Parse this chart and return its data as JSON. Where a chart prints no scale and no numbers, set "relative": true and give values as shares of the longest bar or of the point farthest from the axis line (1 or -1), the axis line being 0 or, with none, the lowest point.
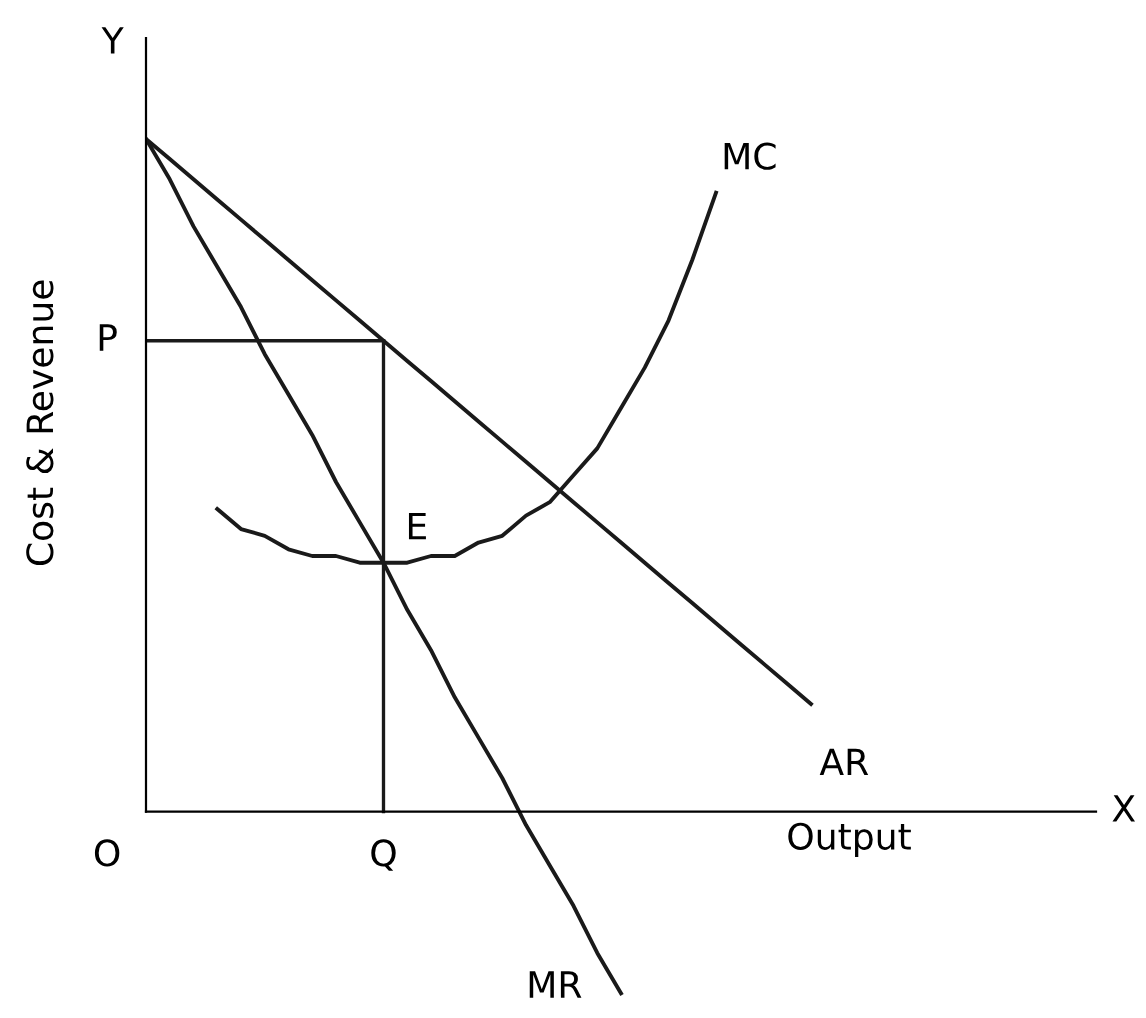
{
  "chart_data": {
    "type": "line",
    "relative": true,
    "xlabel": "Output",
    "ylabel": "Cost & Revenue",
    "categories": [
      null,
      null,
      null,
      null,
      null,
      null,
      null,
      null,
      null,
      null,
      null,
      null,
      null,
      null,
      null,
      null,
      null,
      null,
      null,
      null,
      null,
      null,
      null,
      null,
      null,
      null,
      null,
      null,
      null,
      null,
      null,
      null,
      null,
      null,
      null,
      null,
      null,
      null,
      null,
      null,
      null
    ],
    "series": [
      {
        "name": "AR",
        "color": "#1a1a1a",
        "values": [
          1.0,
          0.97,
          0.94,
          0.91,
          0.88,
          0.85,
          0.82,
          0.79,
          0.76,
          0.73,
          0.7,
          0.67,
          0.64,
          0.61,
          0.58,
          0.55,
          0.52,
          0.49,
          0.46,
          0.43,
          0.4,
          0.37,
          0.34,
          0.31,
          0.28,
          0.25,
          0.22,
          0.19,
          0.16,
          null,
          null,
          null,
          null,
          null,
          null,
          null,
          null,
          null,
          null,
          null,
          null
        ]
      },
      {
        "name": "MR",
        "color": "#1a1a1a",
        "values": [
          1.0,
          0.94,
          0.87,
          0.81,
          0.75,
          0.68,
          0.62,
          0.56,
          0.49,
          0.43,
          0.37,
          0.3,
          0.24,
          0.17,
          0.11,
          0.05,
          -0.02,
          -0.08,
          -0.14,
          -0.21,
          -0.27,
          null,
          null,
          null,
          null,
          null,
          null,
          null,
          null,
          null,
          null,
          null,
          null,
          null,
          null,
          null,
          null,
          null,
          null,
          null,
          null
        ]
      },
      {
        "name": "MC",
        "color": "#1a1a1a",
        "values": [
          null,
          null,
          null,
          0.45,
          0.42,
          0.41,
          0.39,
          0.38,
          0.38,
          0.37,
          0.37,
          0.37,
          0.38,
          0.38,
          0.4,
          0.41,
          0.44,
          0.46,
          0.5,
          0.54,
          0.6,
          0.66,
          0.73,
          0.82,
          0.92,
          null,
          null,
          null,
          null,
          null,
          null,
          null,
          null,
          null,
          null,
          null,
          null,
          null,
          null,
          null,
          null
        ]
      }
    ],
    "ref_lines": [
      {
        "axis": "y",
        "value": 0.7,
        "label": "P",
        "color": "#1a1a1a"
      }
    ],
    "annotations": [
      "O",
      "X",
      "Y",
      "Q",
      {
        "text": "E",
        "y": 0.37
      }
    ],
    "grid": false,
    "legend": false,
    "marker": "none",
    "line_style": "solid"
  }
}
